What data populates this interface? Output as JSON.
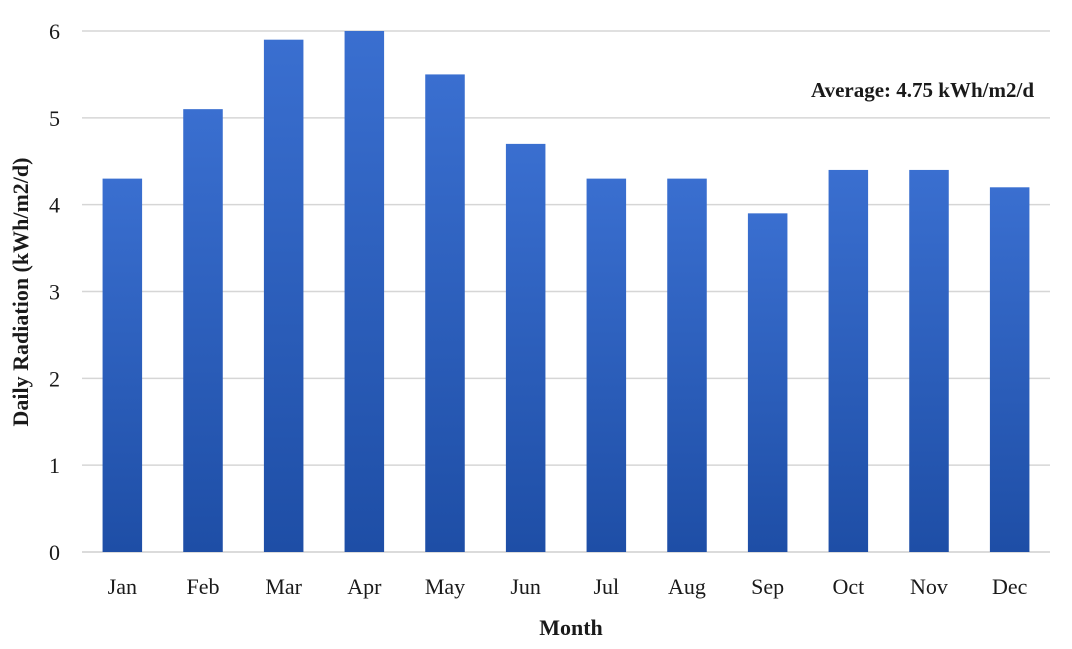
{
  "chart_data": {
    "type": "bar",
    "title": "",
    "xlabel": "Month",
    "ylabel": "Daily Radiation  (kWh/m2/d)",
    "categories": [
      "Jan",
      "Feb",
      "Mar",
      "Apr",
      "May",
      "Jun",
      "Jul",
      "Aug",
      "Sep",
      "Oct",
      "Nov",
      "Dec"
    ],
    "values": [
      4.3,
      5.1,
      5.9,
      6.0,
      5.5,
      4.7,
      4.3,
      4.3,
      3.9,
      4.4,
      4.4,
      4.2
    ],
    "ylim": [
      0,
      6
    ],
    "yticks": [
      0,
      1,
      2,
      3,
      4,
      5,
      6
    ],
    "grid": true,
    "bar_color_top": "#3a6fd0",
    "bar_color_bottom": "#1e4ea6",
    "annotation": "Average:  4.75 kWh/m2/d"
  }
}
